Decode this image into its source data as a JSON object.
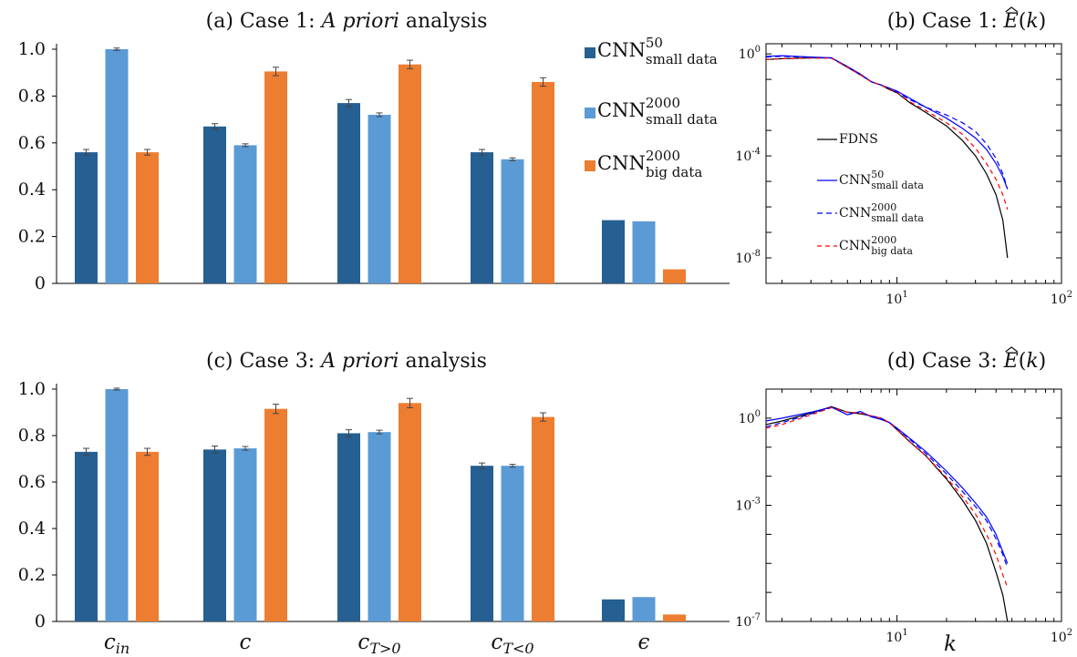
{
  "colors": {
    "cnn50_small": "#265f92",
    "cnn2000_small": "#5b9bd5",
    "cnn2000_big": "#ed7d31",
    "fdns_line": "#000000",
    "spec_cnn50_small": "#0000ff",
    "spec_cnn2000_small": "#0000ff",
    "spec_cnn2000_big": "#ff0000"
  },
  "legend_bar": [
    {
      "base": "CNN",
      "sup": "50",
      "sub": "small data"
    },
    {
      "base": "CNN",
      "sup": "2000",
      "sub": "small data"
    },
    {
      "base": "CNN",
      "sup": "2000",
      "sub": "big data"
    }
  ],
  "legend_spec": [
    {
      "base": "FDNS",
      "sup": "",
      "sub": "",
      "style": "solid-black"
    },
    {
      "base": "CNN",
      "sup": "50",
      "sub": "small data",
      "style": "solid-blue"
    },
    {
      "base": "CNN",
      "sup": "2000",
      "sub": "small data",
      "style": "dashed-blue"
    },
    {
      "base": "CNN",
      "sup": "2000",
      "sub": "big data",
      "style": "dashed-red"
    }
  ],
  "chart_data": [
    {
      "id": "a",
      "type": "bar",
      "title": {
        "prefix": "(a) Case 1: ",
        "italic": "A priori",
        "suffix": " analysis"
      },
      "categories": [
        "c_in",
        "c",
        "c_T>0",
        "c_T<0",
        "ϵ"
      ],
      "category_labels": [
        {
          "main": "c",
          "sub": "in"
        },
        {
          "main": "c",
          "sub": ""
        },
        {
          "main": "c",
          "sub": "T>0"
        },
        {
          "main": "c",
          "sub": "T<0"
        },
        {
          "main": "ϵ",
          "sub": ""
        }
      ],
      "ylim": [
        0,
        1.0
      ],
      "yticks": [
        "0",
        "0.2",
        "0.4",
        "0.6",
        "0.8",
        "1.0"
      ],
      "series": [
        {
          "name": "CNN^50_small data",
          "values": [
            0.56,
            0.67,
            0.77,
            0.56,
            0.27
          ],
          "errors": [
            0.012,
            0.012,
            0.015,
            0.012,
            0
          ]
        },
        {
          "name": "CNN^2000_small data",
          "values": [
            1.0,
            0.59,
            0.72,
            0.53,
            0.265
          ],
          "errors": [
            0.005,
            0.006,
            0.008,
            0.006,
            0
          ]
        },
        {
          "name": "CNN^2000_big data",
          "values": [
            0.56,
            0.905,
            0.935,
            0.86,
            0.06
          ],
          "errors": [
            0.012,
            0.018,
            0.018,
            0.018,
            0
          ]
        }
      ]
    },
    {
      "id": "c",
      "type": "bar",
      "title": {
        "prefix": "(c) Case 3: ",
        "italic": "A priori",
        "suffix": " analysis"
      },
      "categories": [
        "c_in",
        "c",
        "c_T>0",
        "c_T<0",
        "ϵ"
      ],
      "category_labels": [
        {
          "main": "c",
          "sub": "in"
        },
        {
          "main": "c",
          "sub": ""
        },
        {
          "main": "c",
          "sub": "T>0"
        },
        {
          "main": "c",
          "sub": "T<0"
        },
        {
          "main": "ϵ",
          "sub": ""
        }
      ],
      "ylim": [
        0,
        1.0
      ],
      "yticks": [
        "0",
        "0.2",
        "0.4",
        "0.6",
        "0.8",
        "1.0"
      ],
      "series": [
        {
          "name": "CNN^50_small data",
          "values": [
            0.73,
            0.74,
            0.81,
            0.67,
            0.095
          ],
          "errors": [
            0.015,
            0.015,
            0.015,
            0.012,
            0
          ]
        },
        {
          "name": "CNN^2000_small data",
          "values": [
            1.0,
            0.745,
            0.815,
            0.67,
            0.105
          ],
          "errors": [
            0.004,
            0.008,
            0.008,
            0.006,
            0
          ]
        },
        {
          "name": "CNN^2000_big data",
          "values": [
            0.73,
            0.915,
            0.94,
            0.88,
            0.03
          ],
          "errors": [
            0.015,
            0.02,
            0.02,
            0.018,
            0
          ]
        }
      ]
    },
    {
      "id": "b",
      "type": "line",
      "title": {
        "prefix": "(b) Case 1: ",
        "hat": "E",
        "suffix": "(k)"
      },
      "xscale": "log",
      "yscale": "log",
      "xlim": [
        1.6,
        100
      ],
      "ylim": [
        1e-09,
        2.5
      ],
      "xtick_labels": [
        {
          "base": "10",
          "exp": "1"
        },
        {
          "base": "10",
          "exp": "2"
        }
      ],
      "ytick_labels": [
        {
          "base": "10",
          "exp": "0"
        },
        {
          "base": "10",
          "exp": "-4"
        },
        {
          "base": "10",
          "exp": "-8"
        }
      ],
      "series": [
        {
          "name": "FDNS",
          "x": [
            1.6,
            2,
            3,
            4,
            5,
            6,
            7,
            8,
            9,
            10,
            12,
            15,
            20,
            25,
            30,
            35,
            40,
            44,
            47
          ],
          "y": [
            0.6,
            0.65,
            0.7,
            0.7,
            0.3,
            0.15,
            0.08,
            0.06,
            0.04,
            0.03,
            0.012,
            0.005,
            0.0015,
            0.0004,
            0.0001,
            2e-05,
            3e-06,
            3e-07,
            1e-08
          ]
        },
        {
          "name": "CNN^50_small data",
          "x": [
            1.6,
            2,
            3,
            4,
            5,
            6,
            7,
            8,
            9,
            10,
            12,
            15,
            20,
            25,
            30,
            35,
            40,
            44,
            47
          ],
          "y": [
            0.8,
            0.85,
            0.75,
            0.7,
            0.32,
            0.16,
            0.08,
            0.06,
            0.045,
            0.035,
            0.018,
            0.008,
            0.003,
            0.0012,
            0.0005,
            0.00018,
            5e-05,
            1.5e-05,
            5e-06
          ]
        },
        {
          "name": "CNN^2000_small data",
          "x": [
            1.6,
            2,
            3,
            4,
            5,
            6,
            7,
            8,
            9,
            10,
            12,
            15,
            20,
            25,
            30,
            35,
            40,
            44,
            47
          ],
          "y": [
            0.75,
            0.8,
            0.72,
            0.68,
            0.3,
            0.15,
            0.08,
            0.06,
            0.045,
            0.032,
            0.016,
            0.008,
            0.004,
            0.002,
            0.0009,
            0.0003,
            8e-05,
            2e-05,
            5e-06
          ]
        },
        {
          "name": "CNN^2000_big data",
          "x": [
            1.6,
            2,
            3,
            4,
            5,
            6,
            7,
            8,
            9,
            10,
            12,
            15,
            20,
            25,
            30,
            35,
            40,
            44,
            47
          ],
          "y": [
            0.6,
            0.65,
            0.68,
            0.68,
            0.3,
            0.15,
            0.08,
            0.06,
            0.042,
            0.03,
            0.013,
            0.006,
            0.002,
            0.0007,
            0.0002,
            5e-05,
            1.2e-05,
            3e-06,
            8e-07
          ]
        }
      ]
    },
    {
      "id": "d",
      "type": "line",
      "title": {
        "prefix": "(d) Case 3: ",
        "hat": "E",
        "suffix": "(k)"
      },
      "xlabel": "k",
      "xscale": "log",
      "yscale": "log",
      "xlim": [
        1.6,
        100
      ],
      "ylim": [
        1e-07,
        10
      ],
      "xtick_labels": [
        {
          "base": "10",
          "exp": "1"
        },
        {
          "base": "10",
          "exp": "2"
        }
      ],
      "ytick_labels": [
        {
          "base": "10",
          "exp": "0"
        },
        {
          "base": "10",
          "exp": "-3"
        },
        {
          "base": "10",
          "exp": "-7"
        }
      ],
      "series": [
        {
          "name": "FDNS",
          "x": [
            1.6,
            2,
            3,
            4,
            5,
            6,
            7,
            8,
            9,
            10,
            12,
            15,
            20,
            25,
            30,
            35,
            40,
            44,
            47
          ],
          "y": [
            0.6,
            0.8,
            1.5,
            2.5,
            1.6,
            1.4,
            1.2,
            1.0,
            0.7,
            0.4,
            0.15,
            0.05,
            0.008,
            0.0015,
            0.0003,
            5e-05,
            5e-06,
            8e-07,
            5e-08
          ]
        },
        {
          "name": "CNN^50_small data",
          "x": [
            1.6,
            2,
            3,
            4,
            5,
            6,
            7,
            8,
            9,
            10,
            12,
            15,
            20,
            25,
            30,
            35,
            40,
            44,
            47
          ],
          "y": [
            0.8,
            1.0,
            1.6,
            2.4,
            1.3,
            1.7,
            1.1,
            0.9,
            0.7,
            0.45,
            0.2,
            0.07,
            0.015,
            0.004,
            0.0012,
            0.0004,
            0.0001,
            2.5e-05,
            1e-05
          ]
        },
        {
          "name": "CNN^2000_small data",
          "x": [
            1.6,
            2,
            3,
            4,
            5,
            6,
            7,
            8,
            9,
            10,
            12,
            15,
            20,
            25,
            30,
            35,
            40,
            44,
            47
          ],
          "y": [
            0.5,
            0.7,
            1.4,
            2.3,
            1.6,
            1.5,
            1.2,
            1.0,
            0.7,
            0.45,
            0.18,
            0.06,
            0.012,
            0.003,
            0.0009,
            0.0003,
            7e-05,
            2e-05,
            7e-06
          ]
        },
        {
          "name": "CNN^2000_big data",
          "x": [
            1.6,
            2,
            3,
            4,
            5,
            6,
            7,
            8,
            9,
            10,
            12,
            15,
            20,
            25,
            30,
            35,
            40,
            44,
            47
          ],
          "y": [
            0.45,
            0.6,
            1.3,
            2.3,
            1.6,
            1.5,
            1.2,
            1.0,
            0.7,
            0.4,
            0.15,
            0.05,
            0.009,
            0.002,
            0.0005,
            0.0001,
            2e-05,
            4e-06,
            1.5e-06
          ]
        }
      ]
    }
  ]
}
